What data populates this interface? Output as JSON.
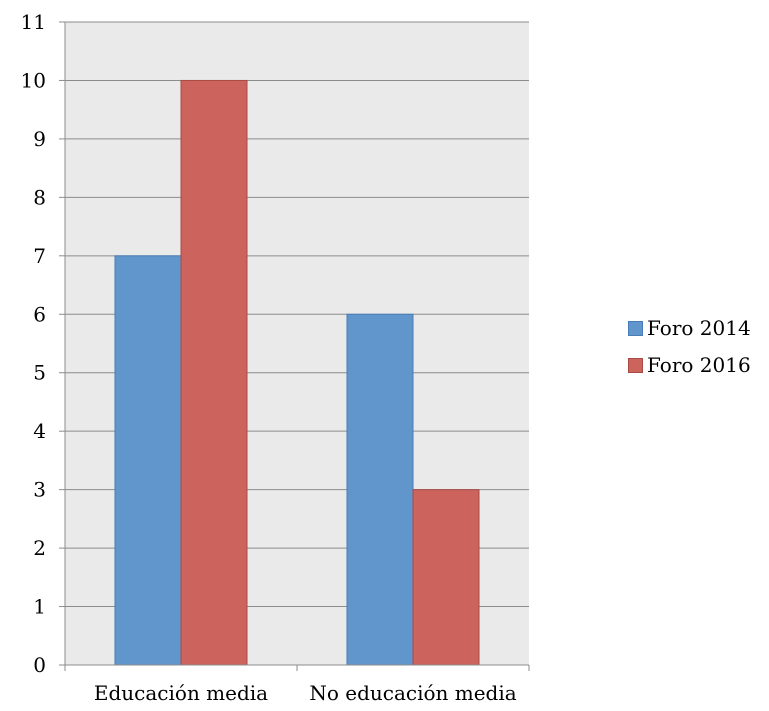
{
  "chart_data": {
    "type": "bar",
    "categories": [
      "Educación media",
      "No educación media"
    ],
    "series": [
      {
        "name": "Foro 2014",
        "values": [
          7,
          6
        ],
        "color": "#6096CB",
        "stroke": "#4A7DB5"
      },
      {
        "name": "Foro 2016",
        "values": [
          10,
          3
        ],
        "color": "#CC635D",
        "stroke": "#A84B46"
      }
    ],
    "yticks": [
      "0",
      "1",
      "2",
      "3",
      "4",
      "5",
      "6",
      "7",
      "8",
      "9",
      "10",
      "11"
    ],
    "ylim": [
      0,
      11
    ],
    "grid": true,
    "plot_background": "#EAEAEA",
    "legend_position": "right"
  }
}
